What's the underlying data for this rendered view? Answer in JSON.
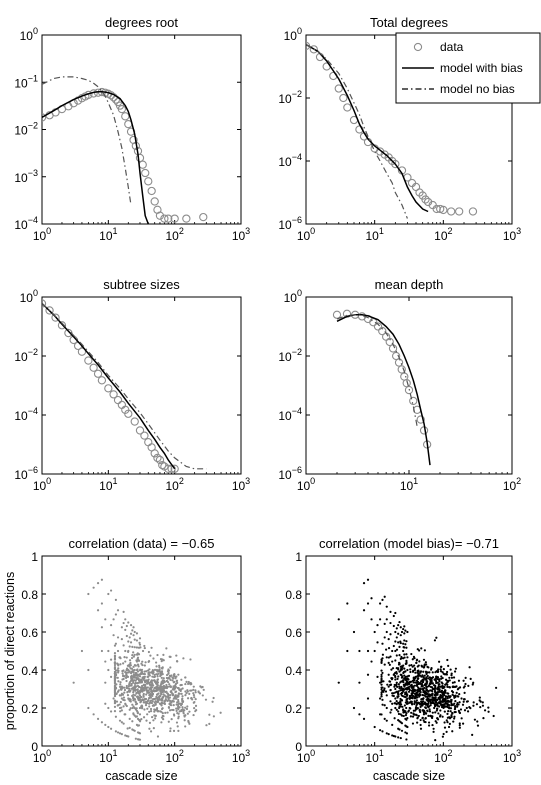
{
  "figure": {
    "legend": {
      "entries": [
        {
          "label": "data",
          "marker": "circle",
          "color": "#8c8c8c"
        },
        {
          "label": "model with bias",
          "line": "solid",
          "color": "#000000"
        },
        {
          "label": "model no bias",
          "line": "dashdot",
          "color": "#000000"
        }
      ]
    },
    "colors": {
      "data": "#8c8c8c",
      "model": "#000000",
      "nobias": "#555555"
    }
  },
  "chart_data": [
    {
      "type": "scatter",
      "title": "degrees root",
      "xscale": "log",
      "yscale": "log",
      "xlim": [
        1,
        1000
      ],
      "ylim": [
        0.0001,
        1
      ],
      "xticks": [
        "10^0",
        "10^1",
        "10^2",
        "10^3"
      ],
      "yticks": [
        "10^-4",
        "10^-3",
        "10^-2",
        "10^-1",
        "10^0"
      ],
      "series": [
        {
          "name": "data",
          "kind": "markers",
          "x": [
            1,
            1.3,
            1.6,
            2,
            2.5,
            3,
            3.5,
            4,
            4.5,
            5,
            6,
            7,
            8,
            9,
            10,
            11,
            12,
            13,
            14,
            15,
            16,
            18,
            20,
            22,
            24,
            26,
            28,
            30,
            33,
            36,
            40,
            45,
            50,
            55,
            60,
            70,
            80,
            100,
            150,
            270
          ],
          "y": [
            0.018,
            0.02,
            0.023,
            0.027,
            0.031,
            0.036,
            0.041,
            0.046,
            0.05,
            0.054,
            0.058,
            0.06,
            0.062,
            0.06,
            0.057,
            0.053,
            0.048,
            0.043,
            0.038,
            0.032,
            0.027,
            0.019,
            0.013,
            0.009,
            0.006,
            0.0045,
            0.0035,
            0.0025,
            0.0018,
            0.0012,
            0.0008,
            0.0005,
            0.0003,
            0.0002,
            0.00015,
            0.00013,
            0.00013,
            0.00013,
            0.00013,
            0.00014
          ]
        },
        {
          "name": "model with bias",
          "kind": "solid",
          "x": [
            1,
            1.5,
            2,
            3,
            4,
            5,
            6,
            7,
            8,
            9,
            10,
            12,
            15,
            18,
            20,
            22,
            25,
            28,
            30,
            33,
            36,
            40
          ],
          "y": [
            0.018,
            0.025,
            0.032,
            0.043,
            0.051,
            0.057,
            0.061,
            0.063,
            0.063,
            0.062,
            0.06,
            0.055,
            0.045,
            0.032,
            0.024,
            0.016,
            0.008,
            0.003,
            0.0012,
            0.0004,
            0.00015,
            0.0001
          ]
        },
        {
          "name": "model no bias",
          "kind": "dashdot",
          "x": [
            1,
            1.5,
            2,
            3,
            4,
            5,
            6,
            7,
            8,
            9,
            10,
            12,
            14,
            16,
            18,
            20,
            22
          ],
          "y": [
            0.09,
            0.12,
            0.13,
            0.13,
            0.12,
            0.11,
            0.095,
            0.08,
            0.065,
            0.05,
            0.037,
            0.02,
            0.009,
            0.004,
            0.0015,
            0.0006,
            0.00025
          ]
        }
      ]
    },
    {
      "type": "scatter",
      "title": "Total degrees",
      "xscale": "log",
      "yscale": "log",
      "xlim": [
        1,
        1000
      ],
      "ylim": [
        1e-06,
        1
      ],
      "xticks": [
        "10^0",
        "10^1",
        "10^2",
        "10^3"
      ],
      "yticks": [
        "10^-6",
        "10^-4",
        "10^-2",
        "10^0"
      ],
      "series": [
        {
          "name": "data",
          "kind": "markers",
          "x": [
            1,
            1.3,
            1.6,
            2,
            2.5,
            3,
            3.5,
            4,
            5,
            6,
            7,
            8,
            10,
            12,
            14,
            16,
            18,
            20,
            25,
            30,
            35,
            40,
            45,
            50,
            55,
            60,
            70,
            80,
            90,
            100,
            130,
            170,
            270
          ],
          "y": [
            0.45,
            0.35,
            0.2,
            0.1,
            0.05,
            0.02,
            0.01,
            0.005,
            0.002,
            0.001,
            0.0006,
            0.0004,
            0.00025,
            0.0002,
            0.00016,
            0.00013,
            0.0001,
            8e-05,
            5e-05,
            3e-05,
            2e-05,
            1.5e-05,
            1e-05,
            8e-06,
            6e-06,
            5e-06,
            4e-06,
            3e-06,
            3e-06,
            2.8e-06,
            2.5e-06,
            2.5e-06,
            2.5e-06
          ]
        },
        {
          "name": "model with bias",
          "kind": "solid",
          "x": [
            1,
            1.5,
            2,
            3,
            4,
            5,
            6,
            7,
            8,
            10,
            12,
            15,
            18,
            20,
            25,
            30,
            35,
            40,
            50,
            60
          ],
          "y": [
            0.5,
            0.3,
            0.15,
            0.04,
            0.012,
            0.004,
            0.0015,
            0.0008,
            0.0005,
            0.0003,
            0.00022,
            0.00015,
            0.0001,
            8e-05,
            4e-05,
            1.5e-05,
            8e-06,
            5e-06,
            3e-06,
            2.5e-06
          ]
        },
        {
          "name": "model no bias",
          "kind": "dashdot",
          "x": [
            1,
            1.5,
            2,
            3,
            4,
            5,
            6,
            7,
            8,
            10,
            12,
            15,
            18,
            20,
            25,
            30
          ],
          "y": [
            0.5,
            0.3,
            0.17,
            0.06,
            0.02,
            0.007,
            0.003,
            0.0012,
            0.0006,
            0.0002,
            0.0001,
            4e-05,
            2e-05,
            1e-05,
            4e-06,
            1.5e-06
          ]
        }
      ]
    },
    {
      "type": "scatter",
      "title": "subtree sizes",
      "xscale": "log",
      "yscale": "log",
      "xlim": [
        1,
        1000
      ],
      "ylim": [
        1e-06,
        1
      ],
      "xticks": [
        "10^0",
        "10^1",
        "10^2",
        "10^3"
      ],
      "yticks": [
        "10^-6",
        "10^-4",
        "10^-2",
        "10^0"
      ],
      "series": [
        {
          "name": "data",
          "kind": "markers",
          "x": [
            1,
            1.3,
            1.6,
            2,
            2.5,
            3,
            3.5,
            4,
            5,
            6,
            7,
            8,
            10,
            12,
            14,
            16,
            18,
            20,
            25,
            30,
            35,
            40,
            45,
            50,
            55,
            60,
            65,
            70,
            80,
            90,
            100
          ],
          "y": [
            0.6,
            0.35,
            0.2,
            0.11,
            0.06,
            0.035,
            0.022,
            0.014,
            0.007,
            0.004,
            0.0025,
            0.0015,
            0.0008,
            0.0005,
            0.00032,
            0.00022,
            0.00015,
            0.00011,
            6e-05,
            3e-05,
            2e-05,
            1.2e-05,
            8e-06,
            5e-06,
            3.5e-06,
            3e-06,
            2e-06,
            1.8e-06,
            1.5e-06,
            1.5e-06,
            1.5e-06
          ]
        },
        {
          "name": "model with bias",
          "kind": "solid",
          "x": [
            1,
            1.5,
            2,
            3,
            4,
            5,
            7,
            10,
            15,
            20,
            30,
            40,
            50,
            60,
            70,
            80,
            100
          ],
          "y": [
            0.6,
            0.25,
            0.12,
            0.045,
            0.022,
            0.012,
            0.005,
            0.0018,
            0.0006,
            0.00025,
            8e-05,
            3e-05,
            1.5e-05,
            8e-06,
            5e-06,
            3e-06,
            1.5e-06
          ]
        },
        {
          "name": "model no bias",
          "kind": "dashdot",
          "x": [
            1,
            1.5,
            2,
            3,
            4,
            5,
            7,
            10,
            15,
            20,
            30,
            40,
            50,
            60,
            80,
            100,
            150,
            200,
            300
          ],
          "y": [
            0.6,
            0.26,
            0.13,
            0.05,
            0.025,
            0.014,
            0.006,
            0.0022,
            0.0008,
            0.00035,
            0.00012,
            5e-05,
            2.5e-05,
            1.4e-05,
            6e-06,
            3.5e-06,
            1.8e-06,
            1.5e-06,
            1.5e-06
          ]
        }
      ]
    },
    {
      "type": "scatter",
      "title": "mean depth",
      "xscale": "log",
      "yscale": "log",
      "xlim": [
        1,
        100
      ],
      "ylim": [
        1e-06,
        1
      ],
      "xticks": [
        "10^0",
        "10^1",
        "10^2"
      ],
      "yticks": [
        "10^-6",
        "10^-4",
        "10^-2",
        "10^0"
      ],
      "series": [
        {
          "name": "data",
          "kind": "markers",
          "x": [
            2,
            2.5,
            3,
            3.5,
            4,
            4.5,
            5,
            5.5,
            6,
            6.5,
            7,
            7.5,
            8,
            8.5,
            9,
            9.5,
            10,
            11,
            12,
            13,
            14,
            15
          ],
          "y": [
            0.25,
            0.27,
            0.25,
            0.22,
            0.18,
            0.14,
            0.1,
            0.07,
            0.045,
            0.03,
            0.018,
            0.01,
            0.006,
            0.0035,
            0.002,
            0.0012,
            0.0007,
            0.0003,
            0.00015,
            7e-05,
            3e-05,
            1e-05
          ]
        },
        {
          "name": "model with bias",
          "kind": "solid",
          "x": [
            2,
            2.5,
            3,
            3.5,
            4,
            5,
            6,
            7,
            8,
            9,
            10,
            11,
            12,
            13,
            14,
            15,
            16
          ],
          "y": [
            0.15,
            0.22,
            0.25,
            0.25,
            0.23,
            0.17,
            0.1,
            0.055,
            0.025,
            0.01,
            0.004,
            0.0015,
            0.0005,
            0.00015,
            5e-05,
            1.2e-05,
            2e-06
          ]
        },
        {
          "name": "model no bias",
          "kind": "dashdot",
          "x": [
            2,
            2.5,
            3,
            3.5,
            4,
            5,
            6,
            7,
            8,
            9,
            10,
            11,
            12
          ],
          "y": [
            0.18,
            0.24,
            0.25,
            0.24,
            0.2,
            0.12,
            0.06,
            0.025,
            0.009,
            0.003,
            0.0008,
            0.0002,
            4e-05
          ]
        }
      ]
    },
    {
      "type": "scatter",
      "title": "correlation (data) = −0.65",
      "xlabel": "cascade size",
      "ylabel": "proportion of direct reactions",
      "xscale": "log",
      "yscale": "linear",
      "xlim": [
        1,
        1000
      ],
      "ylim": [
        0,
        1
      ],
      "xticks": [
        "10^0",
        "10^1",
        "10^2",
        "10^3"
      ],
      "yticks": [
        "0",
        "0.2",
        "0.4",
        "0.6",
        "0.8",
        "1"
      ],
      "point_color": "#8c8c8c",
      "cloud": {
        "n_points": 900,
        "center_log10_x": 1.65,
        "x_spread": 0.35,
        "center_y": 0.3,
        "y_spread": 0.08,
        "max_y_at_10": 0.85
      }
    },
    {
      "type": "scatter",
      "title": "correlation (model bias)= −0.71",
      "xlabel": "cascade size",
      "xscale": "log",
      "yscale": "linear",
      "xlim": [
        1,
        1000
      ],
      "ylim": [
        0,
        1
      ],
      "xticks": [
        "10^0",
        "10^1",
        "10^2",
        "10^3"
      ],
      "yticks": [
        "0",
        "0.2",
        "0.4",
        "0.6",
        "0.8",
        "1"
      ],
      "point_color": "#000000",
      "cloud": {
        "n_points": 900,
        "center_log10_x": 1.75,
        "x_spread": 0.32,
        "center_y": 0.28,
        "y_spread": 0.08,
        "max_y_at_10": 0.9
      }
    }
  ]
}
